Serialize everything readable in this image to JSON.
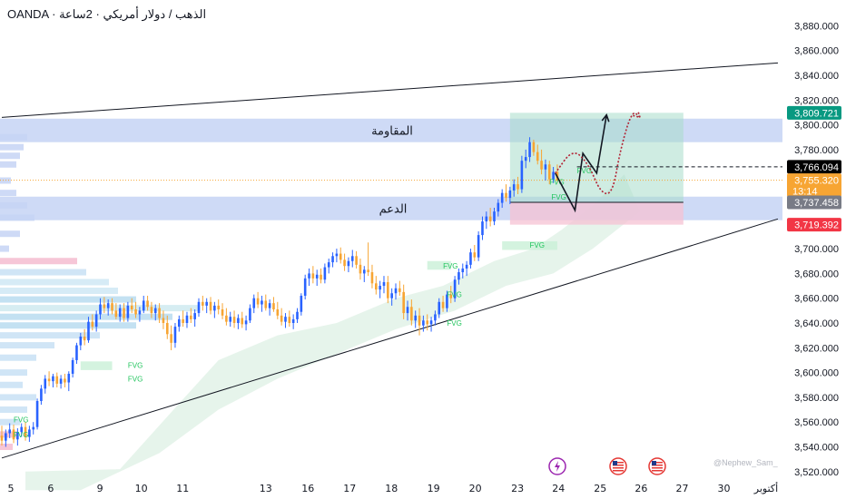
{
  "header": {
    "title": "OANDA · الذهب / دولار أمريكي · 2ساعة"
  },
  "watermark": "@Nephew_Sam_",
  "colors": {
    "up": "#2962ff",
    "down": "#f7a533",
    "zone": "#c5d3f5",
    "channel": "#131722",
    "target_box": "#a8dccb",
    "stop_box": "#f5c2d3",
    "fvg_text": "#22c55e",
    "fvg_box": "#c9f0d7",
    "cloud": "#d6ecdd",
    "forecast_solid": "#131722",
    "forecast_dotted": "#b22234"
  },
  "icons": [
    "lightning-event-icon",
    "us-flag-event-icon",
    "us-flag-event-icon"
  ],
  "chart_data": {
    "type": "candlestick",
    "instrument": "XAU/USD",
    "ylim": [
      3514,
      3892
    ],
    "y_ticks": [
      3520,
      3540,
      3560,
      3580,
      3600,
      3620,
      3640,
      3660,
      3680,
      3700,
      3720,
      3740,
      3760,
      3780,
      3800,
      3820,
      3840,
      3860,
      3880
    ],
    "y_tick_labels": [
      "3,520.000",
      "3,540.000",
      "3,560.000",
      "3,580.000",
      "3,600.000",
      "3,620.000",
      "3,640.000",
      "3,660.000",
      "3,680.000",
      "3,700.000",
      "3,720.000",
      "3,740.000",
      "3,760.000",
      "3,780.000",
      "3,800.000",
      "3,820.000",
      "3,840.000",
      "3,860.000",
      "3,880.000"
    ],
    "x_axis_labels": [
      "5",
      "6",
      "9",
      "10",
      "11",
      "13",
      "16",
      "17",
      "18",
      "19",
      "20",
      "23",
      "24",
      "25",
      "26",
      "27",
      "30",
      "أكتوبر"
    ],
    "x_axis_index": [
      0,
      10.1,
      22.6,
      33.1,
      43.6,
      64.7,
      75.4,
      86.0,
      96.6,
      107.3,
      117.9,
      128.6,
      139.0,
      149.6,
      160.0,
      170.4,
      181.0,
      191.7
    ],
    "zones": [
      {
        "label": "المقاومة",
        "top": 3805,
        "bottom": 3786
      },
      {
        "label": "الدعم",
        "top": 3742,
        "bottom": 3723
      }
    ],
    "channel": {
      "upper": [
        [
          0,
          3806
        ],
        [
          197,
          3850
        ]
      ],
      "lower": [
        [
          0,
          3531
        ],
        [
          197,
          3724
        ]
      ]
    },
    "price_labels": [
      {
        "value": 3809.721,
        "text": "3,809.721",
        "bg": "#089981"
      },
      {
        "value": 3766.094,
        "text": "3,766.094",
        "bg": "#000000"
      },
      {
        "value": 3755.32,
        "text": "3,755.320",
        "sub": "13:14",
        "bg": "#f7a533"
      },
      {
        "value": 3737.458,
        "text": "3,737.458",
        "bg": "#787b86"
      },
      {
        "value": 3719.392,
        "text": "3,719.392",
        "bg": "#f23645"
      }
    ],
    "current_price": 3755.32,
    "dashed_level": 3766.094,
    "position_tool": {
      "start_x": 129,
      "end_x": 173,
      "entry": 3737.458,
      "target": 3809.721,
      "stop": 3719.392
    },
    "forecast_solid": [
      [
        140.5,
        3761
      ],
      [
        145.5,
        3731
      ],
      [
        147.5,
        3777
      ],
      [
        151,
        3761
      ],
      [
        153.5,
        3808
      ]
    ],
    "forecast_dotted": [
      [
        140.5,
        3761
      ],
      [
        145,
        3781
      ],
      [
        149,
        3768
      ],
      [
        152,
        3745
      ],
      [
        155,
        3744
      ],
      [
        157,
        3780
      ],
      [
        160,
        3812
      ],
      [
        162,
        3806
      ]
    ],
    "fvg_labels": [
      {
        "x": 3,
        "price": 3562,
        "text": "FVG"
      },
      {
        "x": 3,
        "price": 3550,
        "text": "FVG"
      },
      {
        "x": 32,
        "price": 3595,
        "text": "FVG"
      },
      {
        "x": 32,
        "price": 3606,
        "text": "FVG"
      },
      {
        "x": 112,
        "price": 3686,
        "text": "FVG"
      },
      {
        "x": 113,
        "price": 3663,
        "text": "FVG"
      },
      {
        "x": 113,
        "price": 3640,
        "text": "FVG"
      },
      {
        "x": 134,
        "price": 3703,
        "text": "FVG"
      },
      {
        "x": 139.5,
        "price": 3742,
        "text": "FVG"
      },
      {
        "x": 139,
        "price": 3754,
        "text": "FVG"
      },
      {
        "x": 146,
        "price": 3763,
        "text": "FVG"
      }
    ],
    "candles": [
      {
        "o": 3549,
        "h": 3557,
        "l": 3541,
        "c": 3545
      },
      {
        "o": 3545,
        "h": 3554,
        "l": 3540,
        "c": 3551
      },
      {
        "o": 3551,
        "h": 3559,
        "l": 3547,
        "c": 3554
      },
      {
        "o": 3554,
        "h": 3558,
        "l": 3543,
        "c": 3546
      },
      {
        "o": 3546,
        "h": 3555,
        "l": 3541,
        "c": 3552
      },
      {
        "o": 3552,
        "h": 3559,
        "l": 3548,
        "c": 3556
      },
      {
        "o": 3556,
        "h": 3560,
        "l": 3545,
        "c": 3548
      },
      {
        "o": 3548,
        "h": 3557,
        "l": 3544,
        "c": 3554
      },
      {
        "o": 3554,
        "h": 3560,
        "l": 3550,
        "c": 3556
      },
      {
        "o": 3556,
        "h": 3579,
        "l": 3554,
        "c": 3577
      },
      {
        "o": 3577,
        "h": 3590,
        "l": 3574,
        "c": 3587
      },
      {
        "o": 3587,
        "h": 3598,
        "l": 3583,
        "c": 3595
      },
      {
        "o": 3595,
        "h": 3601,
        "l": 3589,
        "c": 3593
      },
      {
        "o": 3593,
        "h": 3599,
        "l": 3588,
        "c": 3597
      },
      {
        "o": 3597,
        "h": 3600,
        "l": 3588,
        "c": 3591
      },
      {
        "o": 3591,
        "h": 3598,
        "l": 3587,
        "c": 3595
      },
      {
        "o": 3595,
        "h": 3599,
        "l": 3588,
        "c": 3592
      },
      {
        "o": 3592,
        "h": 3601,
        "l": 3585,
        "c": 3599
      },
      {
        "o": 3599,
        "h": 3612,
        "l": 3596,
        "c": 3610
      },
      {
        "o": 3610,
        "h": 3624,
        "l": 3607,
        "c": 3622
      },
      {
        "o": 3622,
        "h": 3632,
        "l": 3618,
        "c": 3629
      },
      {
        "o": 3629,
        "h": 3635,
        "l": 3622,
        "c": 3626
      },
      {
        "o": 3626,
        "h": 3645,
        "l": 3624,
        "c": 3641
      },
      {
        "o": 3641,
        "h": 3647,
        "l": 3634,
        "c": 3637
      },
      {
        "o": 3637,
        "h": 3650,
        "l": 3633,
        "c": 3647
      },
      {
        "o": 3647,
        "h": 3660,
        "l": 3643,
        "c": 3655
      },
      {
        "o": 3655,
        "h": 3661,
        "l": 3648,
        "c": 3652
      },
      {
        "o": 3652,
        "h": 3659,
        "l": 3646,
        "c": 3656
      },
      {
        "o": 3656,
        "h": 3660,
        "l": 3647,
        "c": 3650
      },
      {
        "o": 3650,
        "h": 3656,
        "l": 3643,
        "c": 3645
      },
      {
        "o": 3645,
        "h": 3655,
        "l": 3641,
        "c": 3652
      },
      {
        "o": 3652,
        "h": 3656,
        "l": 3641,
        "c": 3644
      },
      {
        "o": 3644,
        "h": 3657,
        "l": 3641,
        "c": 3654
      },
      {
        "o": 3654,
        "h": 3660,
        "l": 3648,
        "c": 3651
      },
      {
        "o": 3651,
        "h": 3657,
        "l": 3644,
        "c": 3647
      },
      {
        "o": 3647,
        "h": 3653,
        "l": 3641,
        "c": 3650
      },
      {
        "o": 3650,
        "h": 3662,
        "l": 3648,
        "c": 3658
      },
      {
        "o": 3658,
        "h": 3662,
        "l": 3650,
        "c": 3653
      },
      {
        "o": 3653,
        "h": 3657,
        "l": 3644,
        "c": 3648
      },
      {
        "o": 3648,
        "h": 3655,
        "l": 3642,
        "c": 3652
      },
      {
        "o": 3652,
        "h": 3656,
        "l": 3640,
        "c": 3644
      },
      {
        "o": 3644,
        "h": 3650,
        "l": 3635,
        "c": 3640
      },
      {
        "o": 3640,
        "h": 3646,
        "l": 3627,
        "c": 3631
      },
      {
        "o": 3631,
        "h": 3638,
        "l": 3618,
        "c": 3624
      },
      {
        "o": 3624,
        "h": 3640,
        "l": 3620,
        "c": 3637
      },
      {
        "o": 3637,
        "h": 3646,
        "l": 3633,
        "c": 3643
      },
      {
        "o": 3643,
        "h": 3650,
        "l": 3637,
        "c": 3640
      },
      {
        "o": 3640,
        "h": 3649,
        "l": 3636,
        "c": 3646
      },
      {
        "o": 3646,
        "h": 3652,
        "l": 3640,
        "c": 3643
      },
      {
        "o": 3643,
        "h": 3651,
        "l": 3637,
        "c": 3648
      },
      {
        "o": 3648,
        "h": 3660,
        "l": 3645,
        "c": 3657
      },
      {
        "o": 3657,
        "h": 3662,
        "l": 3650,
        "c": 3654
      },
      {
        "o": 3654,
        "h": 3660,
        "l": 3648,
        "c": 3657
      },
      {
        "o": 3657,
        "h": 3661,
        "l": 3647,
        "c": 3650
      },
      {
        "o": 3650,
        "h": 3657,
        "l": 3644,
        "c": 3654
      },
      {
        "o": 3654,
        "h": 3659,
        "l": 3647,
        "c": 3651
      },
      {
        "o": 3651,
        "h": 3656,
        "l": 3643,
        "c": 3646
      },
      {
        "o": 3646,
        "h": 3652,
        "l": 3638,
        "c": 3641
      },
      {
        "o": 3641,
        "h": 3649,
        "l": 3637,
        "c": 3645
      },
      {
        "o": 3645,
        "h": 3650,
        "l": 3636,
        "c": 3640
      },
      {
        "o": 3640,
        "h": 3647,
        "l": 3635,
        "c": 3644
      },
      {
        "o": 3644,
        "h": 3649,
        "l": 3636,
        "c": 3639
      },
      {
        "o": 3639,
        "h": 3646,
        "l": 3634,
        "c": 3642
      },
      {
        "o": 3642,
        "h": 3655,
        "l": 3640,
        "c": 3652
      },
      {
        "o": 3652,
        "h": 3663,
        "l": 3648,
        "c": 3660
      },
      {
        "o": 3660,
        "h": 3665,
        "l": 3652,
        "c": 3655
      },
      {
        "o": 3655,
        "h": 3662,
        "l": 3649,
        "c": 3658
      },
      {
        "o": 3658,
        "h": 3663,
        "l": 3650,
        "c": 3652
      },
      {
        "o": 3652,
        "h": 3659,
        "l": 3646,
        "c": 3656
      },
      {
        "o": 3656,
        "h": 3661,
        "l": 3649,
        "c": 3651
      },
      {
        "o": 3651,
        "h": 3657,
        "l": 3643,
        "c": 3646
      },
      {
        "o": 3646,
        "h": 3652,
        "l": 3638,
        "c": 3641
      },
      {
        "o": 3641,
        "h": 3648,
        "l": 3636,
        "c": 3645
      },
      {
        "o": 3645,
        "h": 3650,
        "l": 3637,
        "c": 3640
      },
      {
        "o": 3640,
        "h": 3647,
        "l": 3635,
        "c": 3643
      },
      {
        "o": 3643,
        "h": 3652,
        "l": 3640,
        "c": 3649
      },
      {
        "o": 3649,
        "h": 3664,
        "l": 3646,
        "c": 3662
      },
      {
        "o": 3662,
        "h": 3679,
        "l": 3659,
        "c": 3676
      },
      {
        "o": 3676,
        "h": 3684,
        "l": 3670,
        "c": 3680
      },
      {
        "o": 3680,
        "h": 3686,
        "l": 3672,
        "c": 3676
      },
      {
        "o": 3676,
        "h": 3683,
        "l": 3670,
        "c": 3679
      },
      {
        "o": 3679,
        "h": 3684,
        "l": 3672,
        "c": 3675
      },
      {
        "o": 3675,
        "h": 3688,
        "l": 3672,
        "c": 3685
      },
      {
        "o": 3685,
        "h": 3692,
        "l": 3680,
        "c": 3689
      },
      {
        "o": 3689,
        "h": 3697,
        "l": 3685,
        "c": 3694
      },
      {
        "o": 3694,
        "h": 3700,
        "l": 3689,
        "c": 3696
      },
      {
        "o": 3696,
        "h": 3701,
        "l": 3688,
        "c": 3691
      },
      {
        "o": 3691,
        "h": 3696,
        "l": 3682,
        "c": 3686
      },
      {
        "o": 3686,
        "h": 3693,
        "l": 3681,
        "c": 3690
      },
      {
        "o": 3690,
        "h": 3699,
        "l": 3685,
        "c": 3694
      },
      {
        "o": 3694,
        "h": 3698,
        "l": 3684,
        "c": 3687
      },
      {
        "o": 3687,
        "h": 3692,
        "l": 3675,
        "c": 3680
      },
      {
        "o": 3680,
        "h": 3686,
        "l": 3673,
        "c": 3683
      },
      {
        "o": 3683,
        "h": 3705,
        "l": 3678,
        "c": 3681
      },
      {
        "o": 3681,
        "h": 3687,
        "l": 3668,
        "c": 3672
      },
      {
        "o": 3672,
        "h": 3678,
        "l": 3663,
        "c": 3667
      },
      {
        "o": 3667,
        "h": 3674,
        "l": 3660,
        "c": 3670
      },
      {
        "o": 3670,
        "h": 3678,
        "l": 3664,
        "c": 3673
      },
      {
        "o": 3673,
        "h": 3678,
        "l": 3656,
        "c": 3660
      },
      {
        "o": 3660,
        "h": 3668,
        "l": 3654,
        "c": 3664
      },
      {
        "o": 3664,
        "h": 3672,
        "l": 3659,
        "c": 3668
      },
      {
        "o": 3668,
        "h": 3674,
        "l": 3662,
        "c": 3665
      },
      {
        "o": 3665,
        "h": 3671,
        "l": 3643,
        "c": 3648
      },
      {
        "o": 3648,
        "h": 3658,
        "l": 3642,
        "c": 3653
      },
      {
        "o": 3653,
        "h": 3659,
        "l": 3638,
        "c": 3642
      },
      {
        "o": 3642,
        "h": 3650,
        "l": 3636,
        "c": 3646
      },
      {
        "o": 3646,
        "h": 3652,
        "l": 3630,
        "c": 3638
      },
      {
        "o": 3638,
        "h": 3646,
        "l": 3633,
        "c": 3642
      },
      {
        "o": 3642,
        "h": 3647,
        "l": 3634,
        "c": 3639
      },
      {
        "o": 3639,
        "h": 3645,
        "l": 3633,
        "c": 3642
      },
      {
        "o": 3642,
        "h": 3650,
        "l": 3638,
        "c": 3647
      },
      {
        "o": 3647,
        "h": 3660,
        "l": 3644,
        "c": 3657
      },
      {
        "o": 3657,
        "h": 3662,
        "l": 3649,
        "c": 3652
      },
      {
        "o": 3652,
        "h": 3666,
        "l": 3649,
        "c": 3663
      },
      {
        "o": 3663,
        "h": 3670,
        "l": 3656,
        "c": 3660
      },
      {
        "o": 3660,
        "h": 3678,
        "l": 3657,
        "c": 3675
      },
      {
        "o": 3675,
        "h": 3684,
        "l": 3671,
        "c": 3681
      },
      {
        "o": 3681,
        "h": 3688,
        "l": 3676,
        "c": 3684
      },
      {
        "o": 3684,
        "h": 3690,
        "l": 3678,
        "c": 3687
      },
      {
        "o": 3687,
        "h": 3700,
        "l": 3684,
        "c": 3697
      },
      {
        "o": 3697,
        "h": 3703,
        "l": 3690,
        "c": 3693
      },
      {
        "o": 3693,
        "h": 3714,
        "l": 3690,
        "c": 3711
      },
      {
        "o": 3711,
        "h": 3726,
        "l": 3707,
        "c": 3722
      },
      {
        "o": 3722,
        "h": 3730,
        "l": 3716,
        "c": 3726
      },
      {
        "o": 3726,
        "h": 3733,
        "l": 3718,
        "c": 3722
      },
      {
        "o": 3722,
        "h": 3733,
        "l": 3719,
        "c": 3730
      },
      {
        "o": 3730,
        "h": 3740,
        "l": 3726,
        "c": 3737
      },
      {
        "o": 3737,
        "h": 3748,
        "l": 3733,
        "c": 3745
      },
      {
        "o": 3745,
        "h": 3752,
        "l": 3738,
        "c": 3741
      },
      {
        "o": 3741,
        "h": 3750,
        "l": 3736,
        "c": 3747
      },
      {
        "o": 3747,
        "h": 3756,
        "l": 3742,
        "c": 3752
      },
      {
        "o": 3752,
        "h": 3758,
        "l": 3744,
        "c": 3748
      },
      {
        "o": 3748,
        "h": 3775,
        "l": 3745,
        "c": 3771
      },
      {
        "o": 3771,
        "h": 3780,
        "l": 3765,
        "c": 3774
      },
      {
        "o": 3774,
        "h": 3790,
        "l": 3770,
        "c": 3786
      },
      {
        "o": 3786,
        "h": 3788,
        "l": 3775,
        "c": 3778
      },
      {
        "o": 3778,
        "h": 3784,
        "l": 3768,
        "c": 3771
      },
      {
        "o": 3771,
        "h": 3780,
        "l": 3760,
        "c": 3764
      },
      {
        "o": 3764,
        "h": 3772,
        "l": 3755,
        "c": 3768
      },
      {
        "o": 3768,
        "h": 3771,
        "l": 3752,
        "c": 3756
      },
      {
        "o": 3756,
        "h": 3766,
        "l": 3753,
        "c": 3762
      },
      {
        "o": 3762,
        "h": 3768,
        "l": 3753,
        "c": 3755
      }
    ]
  }
}
